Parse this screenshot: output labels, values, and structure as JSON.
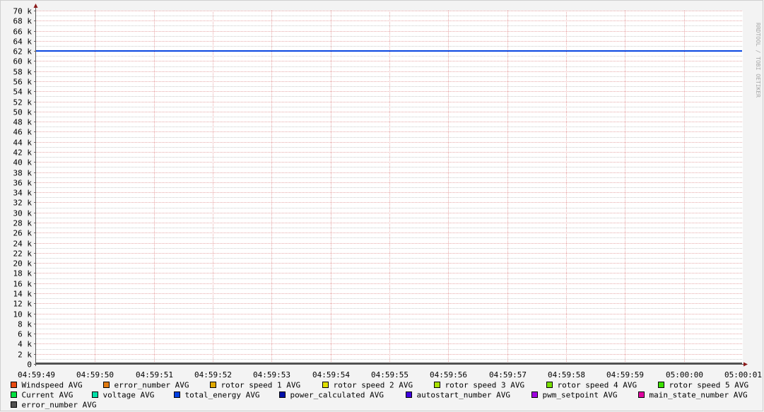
{
  "chart_data": {
    "type": "line",
    "watermark": "RRDTOOL / TOBI OETIKER",
    "ylim": [
      0,
      70000
    ],
    "y_ticks": [
      0,
      2000,
      4000,
      6000,
      8000,
      10000,
      12000,
      14000,
      16000,
      18000,
      20000,
      22000,
      24000,
      26000,
      28000,
      30000,
      32000,
      34000,
      36000,
      38000,
      40000,
      42000,
      44000,
      46000,
      48000,
      50000,
      52000,
      54000,
      56000,
      58000,
      60000,
      62000,
      64000,
      66000,
      68000,
      70000
    ],
    "y_tick_labels": [
      "0",
      "2 k",
      "4 k",
      "6 k",
      "8 k",
      "10 k",
      "12 k",
      "14 k",
      "16 k",
      "18 k",
      "20 k",
      "22 k",
      "24 k",
      "26 k",
      "28 k",
      "30 k",
      "32 k",
      "34 k",
      "36 k",
      "38 k",
      "40 k",
      "42 k",
      "44 k",
      "46 k",
      "48 k",
      "50 k",
      "52 k",
      "54 k",
      "56 k",
      "58 k",
      "60 k",
      "62 k",
      "64 k",
      "66 k",
      "68 k",
      "70 k"
    ],
    "x_tick_labels": [
      "04:59:49",
      "04:59:50",
      "04:59:51",
      "04:59:52",
      "04:59:53",
      "04:59:54",
      "04:59:55",
      "04:59:56",
      "04:59:57",
      "04:59:58",
      "04:59:59",
      "05:00:00",
      "05:00:01"
    ],
    "grid": true,
    "legend_placement": "bottom",
    "series": [
      {
        "name": "Windspeed AVG",
        "color": "#e84a10",
        "value": 0
      },
      {
        "name": "error_number AVG",
        "color": "#e07a10",
        "value": 0
      },
      {
        "name": "rotor speed 1 AVG",
        "color": "#e0a800",
        "value": 0
      },
      {
        "name": "rotor speed 2 AVG",
        "color": "#e0e000",
        "value": 0
      },
      {
        "name": "rotor speed 3 AVG",
        "color": "#a8e000",
        "value": 0
      },
      {
        "name": "rotor speed 4 AVG",
        "color": "#78e000",
        "value": 0
      },
      {
        "name": "rotor speed 5 AVG",
        "color": "#3ce000",
        "value": 0
      },
      {
        "name": "Current AVG",
        "color": "#00e040",
        "value": 0
      },
      {
        "name": "voltage AVG",
        "color": "#00e0a8",
        "value": 0
      },
      {
        "name": "total_energy AVG",
        "color": "#0040e0",
        "value": 62000
      },
      {
        "name": "power_calculated AVG",
        "color": "#0010a8",
        "value": 0
      },
      {
        "name": "autostart_number AVG",
        "color": "#4000e0",
        "value": 0
      },
      {
        "name": "pwm_setpoint AVG",
        "color": "#a000e0",
        "value": 0
      },
      {
        "name": "main_state_number AVG",
        "color": "#e000a0",
        "value": 0
      },
      {
        "name": "error_number AVG",
        "color": "#505050",
        "value": 0
      }
    ]
  }
}
